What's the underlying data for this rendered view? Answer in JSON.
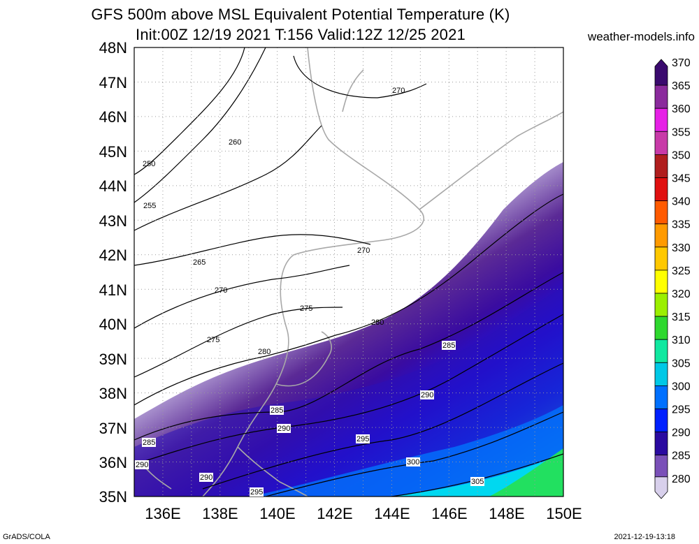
{
  "title": {
    "line1": "GFS 500m above MSL Equivalent Potential Temperature (K)",
    "line2": "Init:00Z 12/19 2021 T:156 Valid:12Z 12/25 2021"
  },
  "site": "weather-models.info",
  "footer": {
    "left": "GrADS/COLA",
    "right": "2021-12-19-13:18"
  },
  "map": {
    "lat_labels": [
      "48N",
      "47N",
      "46N",
      "45N",
      "44N",
      "43N",
      "42N",
      "41N",
      "40N",
      "39N",
      "38N",
      "37N",
      "36N",
      "35N"
    ],
    "lon_labels": [
      "136E",
      "138E",
      "140E",
      "142E",
      "144E",
      "146E",
      "148E",
      "150E"
    ],
    "lat_range": [
      35,
      48
    ],
    "lon_range": [
      135,
      150
    ],
    "grid": "dotted",
    "contour_labels": [
      "270",
      "260",
      "250",
      "255",
      "265",
      "270",
      "270",
      "275",
      "280",
      "275",
      "280",
      "285",
      "290",
      "285",
      "290",
      "295",
      "300",
      "305",
      "285",
      "290",
      "290",
      "295"
    ]
  },
  "colorbar": {
    "ticks": [
      "370",
      "365",
      "360",
      "355",
      "350",
      "345",
      "340",
      "335",
      "330",
      "325",
      "320",
      "315",
      "310",
      "305",
      "300",
      "295",
      "290",
      "285",
      "280"
    ],
    "colors": [
      "#3a0a6e",
      "#8a2a9c",
      "#e620e6",
      "#c83aa8",
      "#b01e1e",
      "#e01010",
      "#ff5a00",
      "#ff9a00",
      "#ffc800",
      "#ffff00",
      "#9bef00",
      "#2ed82e",
      "#10e8a0",
      "#00c8e6",
      "#0070ff",
      "#0020ff",
      "#2a0aa0",
      "#7a50b8",
      "#d8d0ec"
    ]
  }
}
